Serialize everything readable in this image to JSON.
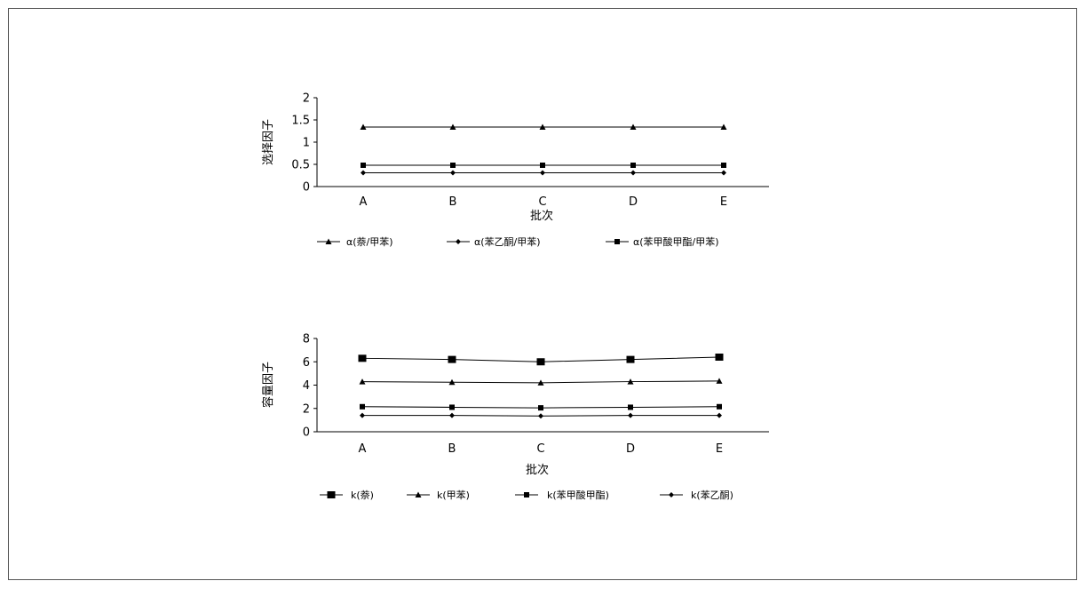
{
  "chart_data": [
    {
      "type": "line",
      "categories": [
        "A",
        "B",
        "C",
        "D",
        "E"
      ],
      "xlabel": "批次",
      "ylabel": "选择因子",
      "ylim": [
        0,
        2
      ],
      "yticks": [
        "0",
        "0.5",
        "1",
        "1.5",
        "2"
      ],
      "grid": false,
      "legend_position": "bottom",
      "series": [
        {
          "name": "α(萘/甲苯)",
          "marker": "triangle",
          "values": [
            1.34,
            1.34,
            1.34,
            1.34,
            1.34
          ]
        },
        {
          "name": "α(苯乙酮/甲苯)",
          "marker": "diamond",
          "values": [
            0.31,
            0.31,
            0.31,
            0.31,
            0.31
          ]
        },
        {
          "name": "α(苯甲酸甲酯/甲苯)",
          "marker": "square",
          "values": [
            0.48,
            0.48,
            0.48,
            0.48,
            0.48
          ]
        }
      ]
    },
    {
      "type": "line",
      "categories": [
        "A",
        "B",
        "C",
        "D",
        "E"
      ],
      "xlabel": "批次",
      "ylabel": "容量因子",
      "ylim": [
        0,
        8
      ],
      "yticks": [
        "0",
        "2",
        "4",
        "6",
        "8"
      ],
      "grid": false,
      "legend_position": "bottom",
      "series": [
        {
          "name": "k(萘)",
          "marker": "square-large",
          "values": [
            6.3,
            6.2,
            6.0,
            6.2,
            6.4
          ]
        },
        {
          "name": "k(甲苯)",
          "marker": "triangle",
          "values": [
            4.3,
            4.25,
            4.2,
            4.3,
            4.35
          ]
        },
        {
          "name": "k(苯甲酸甲酯)",
          "marker": "square",
          "values": [
            2.15,
            2.1,
            2.05,
            2.1,
            2.15
          ]
        },
        {
          "name": "k(苯乙酮)",
          "marker": "diamond",
          "values": [
            1.4,
            1.4,
            1.35,
            1.4,
            1.4
          ]
        }
      ]
    }
  ]
}
